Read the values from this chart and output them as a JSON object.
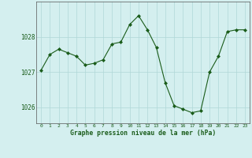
{
  "x": [
    0,
    1,
    2,
    3,
    4,
    5,
    6,
    7,
    8,
    9,
    10,
    11,
    12,
    13,
    14,
    15,
    16,
    17,
    18,
    19,
    20,
    21,
    22,
    23
  ],
  "y": [
    1027.05,
    1027.5,
    1027.65,
    1027.55,
    1027.45,
    1027.2,
    1027.25,
    1027.35,
    1027.8,
    1027.85,
    1028.35,
    1028.6,
    1028.2,
    1027.7,
    1026.7,
    1026.05,
    1025.95,
    1025.85,
    1025.9,
    1027.0,
    1027.45,
    1028.15,
    1028.2,
    1028.2
  ],
  "line_color": "#1a5c1a",
  "marker_color": "#1a5c1a",
  "bg_color": "#d4efef",
  "grid_color": "#b0d8d8",
  "xlabel": "Graphe pression niveau de la mer (hPa)",
  "xlabel_color": "#1a5c1a",
  "tick_color": "#1a5c1a",
  "ylim": [
    1025.55,
    1029.0
  ],
  "yticks": [
    1026,
    1027,
    1028
  ],
  "xticks": [
    0,
    1,
    2,
    3,
    4,
    5,
    6,
    7,
    8,
    9,
    10,
    11,
    12,
    13,
    14,
    15,
    16,
    17,
    18,
    19,
    20,
    21,
    22,
    23
  ]
}
